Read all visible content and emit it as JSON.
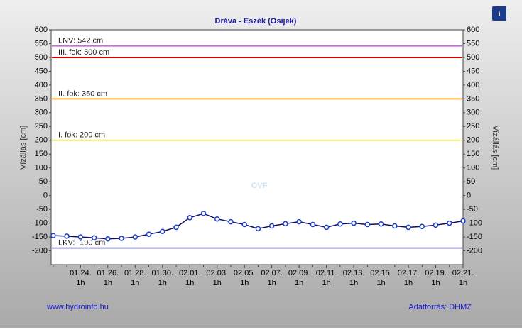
{
  "chart_data": {
    "type": "line",
    "title": "Dráva - Eszék (Osijek)",
    "ylabel": "Vízállás [cm]",
    "y2label": "Vízállás [cm]",
    "footer_left": "www.hydroinfo.hu",
    "footer_right": "Adatforrás: DHMZ",
    "info_icon": "i",
    "watermark": "OVF",
    "x_sublabel": "1h",
    "categories": [
      null,
      null,
      "01.24.",
      null,
      "01.26.",
      null,
      "01.28.",
      null,
      "01.30.",
      null,
      "02.01.",
      null,
      "02.03.",
      null,
      "02.05.",
      null,
      "02.07.",
      null,
      "02.09.",
      null,
      "02.11.",
      null,
      "02.13.",
      null,
      "02.15.",
      null,
      "02.17.",
      null,
      "02.19.",
      null,
      "02.21."
    ],
    "series": [
      {
        "name": "Vízállás",
        "color": "#1a3cc8",
        "values": [
          -145,
          -147,
          -150,
          -153,
          -157,
          -155,
          -150,
          -140,
          -130,
          -115,
          -80,
          -65,
          -85,
          -95,
          -105,
          -120,
          -110,
          -102,
          -95,
          -105,
          -115,
          -103,
          -100,
          -105,
          -103,
          -110,
          -115,
          -112,
          -107,
          -100,
          -92
        ]
      }
    ],
    "reference_lines": [
      {
        "label": "LNV: 542 cm",
        "value": 542,
        "color": "#c070d0"
      },
      {
        "label": "III. fok: 500 cm",
        "value": 500,
        "color": "#cc0000"
      },
      {
        "label": "II. fok: 350 cm",
        "value": 350,
        "color": "#ffb030"
      },
      {
        "label": "I. fok: 200 cm",
        "value": 200,
        "color": "#f0f070"
      },
      {
        "label": "LKV: -190 cm",
        "value": -190,
        "color": "#9a9ad0"
      }
    ],
    "ylim": [
      -250,
      600
    ],
    "yticks": [
      -200,
      -150,
      -100,
      -50,
      0,
      50,
      100,
      150,
      200,
      250,
      300,
      350,
      400,
      450,
      500,
      550,
      600
    ]
  }
}
